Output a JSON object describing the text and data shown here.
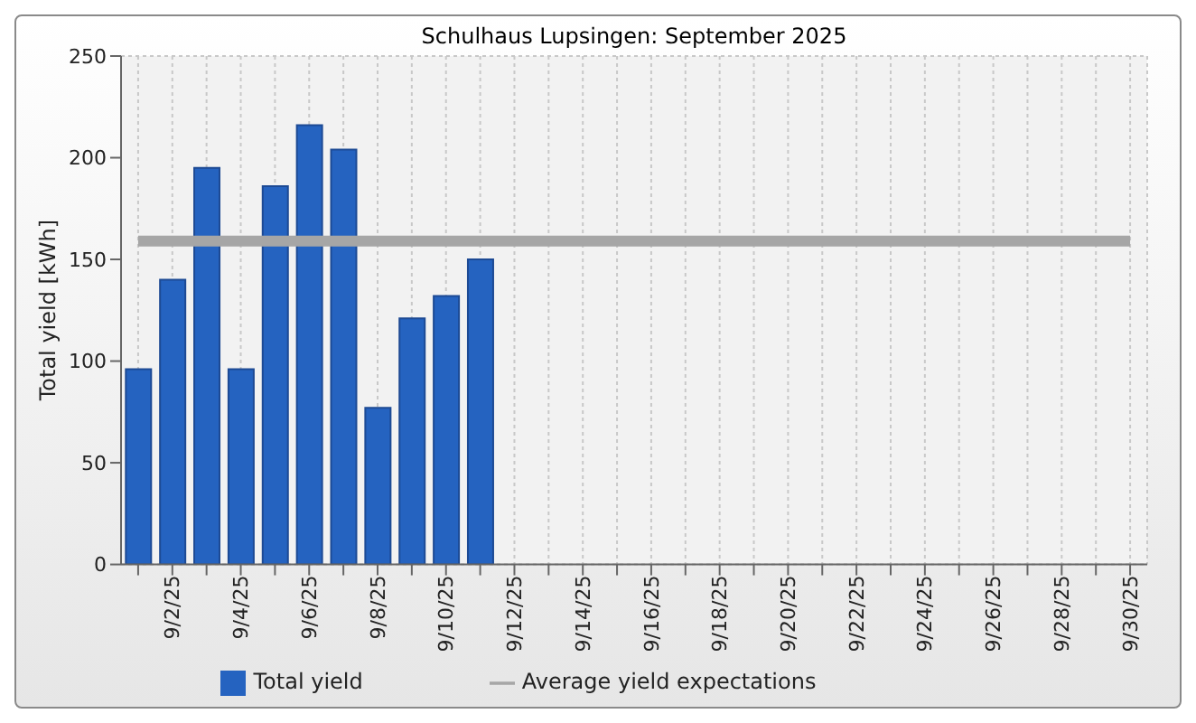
{
  "chart_data": {
    "type": "bar",
    "title": "Schulhaus Lupsingen: September 2025",
    "ylabel": "Total yield [kWh]",
    "categories": [
      null,
      "9/2/25",
      null,
      "9/4/25",
      null,
      "9/6/25",
      null,
      "9/8/25",
      null,
      "9/10/25",
      null,
      "9/12/25",
      null,
      "9/14/25",
      null,
      "9/16/25",
      null,
      "9/18/25",
      null,
      "9/20/25",
      null,
      "9/22/25",
      null,
      "9/24/25",
      null,
      "9/26/25",
      null,
      "9/28/25",
      null,
      "9/30/25"
    ],
    "series": [
      {
        "name": "Total yield",
        "color": "#2563c0",
        "values": [
          96,
          140,
          195,
          96,
          186,
          216,
          204,
          77,
          121,
          132,
          150,
          null,
          null,
          null,
          null,
          null,
          null,
          null,
          null,
          null,
          null,
          null,
          null,
          null,
          null,
          null,
          null,
          null,
          null,
          null
        ]
      },
      {
        "name": "Average yield expectations",
        "type": "line",
        "color": "#a6a6a6",
        "values": [
          159,
          159,
          159,
          159,
          159,
          159,
          159,
          159,
          159,
          159,
          159,
          159,
          159,
          159,
          159,
          159,
          159,
          159,
          159,
          159,
          159,
          159,
          159,
          159,
          159,
          159,
          159,
          159,
          159,
          159
        ]
      }
    ],
    "ylim": [
      0,
      250
    ],
    "yticks": [
      0,
      50,
      100,
      150,
      200,
      250
    ],
    "grid": true,
    "legend": "bottom"
  }
}
